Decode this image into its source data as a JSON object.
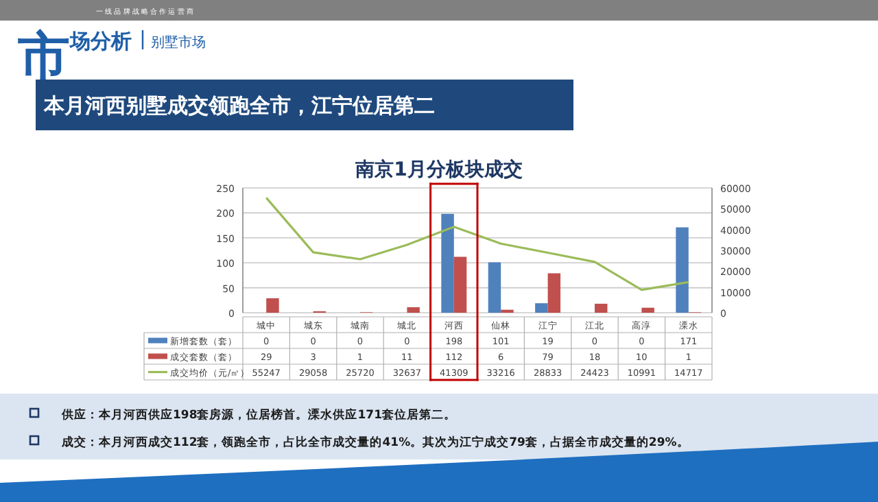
{
  "chart_data": {
    "type": "bar",
    "title": "南京1月分板块成交",
    "subtitle": "本月河西别墅成交领跑全市，江宁位居第二",
    "annotations": [
      "一 线 品 牌 战 略 合 作 运 营 商",
      "市场分析",
      "别墅市场",
      "供应：本月河西供应198套房源，位居榜首。溧水供应171套位居第二。",
      "成交：本月河西成交112套，领跑全市，占比全市成交量的41%。其次为江宁成交79套，占据全市成交量的29%。"
    ],
    "categories": [
      "城中",
      "城东",
      "城南",
      "城北",
      "河西",
      "仙林",
      "江宁",
      "江北",
      "高淳",
      "溧水"
    ],
    "series": [
      {
        "name": "新增套数（套）",
        "color": "#4f81bd",
        "values": [
          0,
          0,
          0,
          0,
          198,
          101,
          19,
          0,
          0,
          171
        ]
      },
      {
        "name": "成交套数（套）",
        "color": "#c0504d",
        "values": [
          29,
          3,
          1,
          11,
          112,
          6,
          79,
          18,
          10,
          1
        ]
      },
      {
        "name": "成交均价（元/㎡）",
        "color": "#9bbb59",
        "type": "line",
        "axis": "y2",
        "values": [
          55247,
          29058,
          25720,
          32637,
          41309,
          33216,
          28833,
          24423,
          10991,
          14717
        ]
      }
    ],
    "ylim": [
      0,
      250
    ],
    "yticks": [
      0,
      50,
      100,
      150,
      200,
      250
    ],
    "y2lim": [
      0,
      60000
    ],
    "y2ticks": [
      0,
      10000,
      20000,
      30000,
      40000,
      50000,
      60000
    ],
    "grid": "y",
    "legend": "bottom",
    "data_labels": true
  }
}
